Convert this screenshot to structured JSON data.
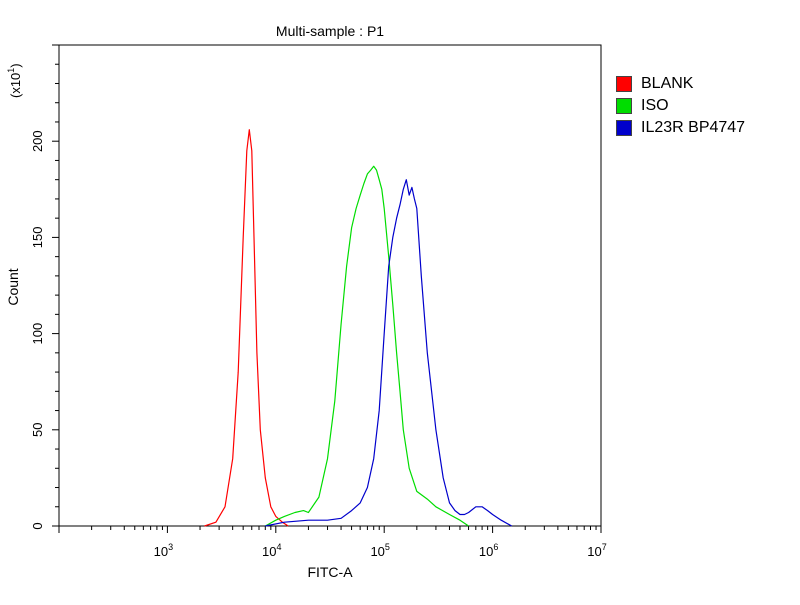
{
  "chart_data": {
    "type": "line",
    "title": "Multi-sample : P1",
    "xlabel": "FITC-A",
    "ylabel": "Count",
    "y_multiplier": "(x10",
    "y_multiplier_exp": "1",
    "y_multiplier_close": ")",
    "x_scale": "log",
    "xlim": [
      100,
      10000000
    ],
    "ylim": [
      0,
      250
    ],
    "x_ticks": [
      {
        "base": "10",
        "exp": "3",
        "value": 1000
      },
      {
        "base": "10",
        "exp": "4",
        "value": 10000
      },
      {
        "base": "10",
        "exp": "5",
        "value": 100000
      },
      {
        "base": "10",
        "exp": "6",
        "value": 1000000
      },
      {
        "base": "10",
        "exp": "7",
        "value": 10000000
      }
    ],
    "y_ticks": [
      "0",
      "50",
      "100",
      "150",
      "200"
    ],
    "legend_position": "right",
    "series": [
      {
        "name": "BLANK",
        "color": "#ff0000",
        "x": [
          2200,
          2800,
          3400,
          4000,
          4500,
          5000,
          5400,
          5700,
          6000,
          6300,
          6700,
          7200,
          8000,
          9000,
          10000,
          11500,
          13000
        ],
        "y": [
          0,
          2,
          10,
          35,
          80,
          150,
          195,
          206,
          195,
          150,
          90,
          50,
          25,
          10,
          5,
          2,
          0
        ]
      },
      {
        "name": "ISO",
        "color": "#00dd00",
        "x": [
          8000,
          10000,
          12000,
          15000,
          18000,
          20000,
          25000,
          30000,
          35000,
          40000,
          45000,
          50000,
          55000,
          60000,
          65000,
          70000,
          75000,
          80000,
          85000,
          90000,
          95000,
          100000,
          110000,
          120000,
          130000,
          140000,
          150000,
          170000,
          200000,
          250000,
          300000,
          400000,
          500000,
          600000
        ],
        "y": [
          0,
          3,
          5,
          7,
          8,
          7,
          15,
          35,
          65,
          105,
          135,
          155,
          165,
          172,
          178,
          183,
          185,
          187,
          185,
          180,
          175,
          165,
          140,
          115,
          90,
          70,
          50,
          30,
          18,
          14,
          10,
          6,
          3,
          0
        ]
      },
      {
        "name": "IL23R BP4747",
        "color": "#0000cc",
        "x": [
          8000,
          12000,
          20000,
          30000,
          40000,
          50000,
          60000,
          70000,
          80000,
          90000,
          100000,
          110000,
          120000,
          130000,
          140000,
          150000,
          160000,
          170000,
          180000,
          190000,
          200000,
          220000,
          250000,
          300000,
          350000,
          400000,
          450000,
          500000,
          550000,
          600000,
          700000,
          800000,
          900000,
          1000000,
          1200000,
          1500000
        ],
        "y": [
          0,
          2,
          3,
          3,
          4,
          8,
          12,
          20,
          35,
          60,
          100,
          135,
          150,
          160,
          167,
          175,
          180,
          172,
          176,
          170,
          165,
          130,
          90,
          50,
          25,
          12,
          8,
          6,
          6,
          7,
          10,
          10,
          8,
          6,
          3,
          0
        ]
      }
    ]
  }
}
